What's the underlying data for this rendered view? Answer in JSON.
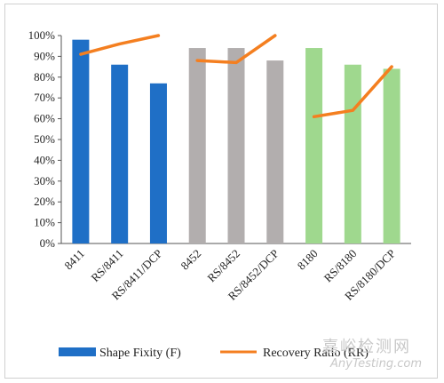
{
  "chart_data": {
    "type": "bar",
    "title": "",
    "xlabel": "",
    "ylabel": "",
    "ylim": [
      0,
      100
    ],
    "yticks": [
      "0%",
      "10%",
      "20%",
      "30%",
      "40%",
      "50%",
      "60%",
      "70%",
      "80%",
      "90%",
      "100%"
    ],
    "categories": [
      "8411",
      "RS/8411",
      "RS/8411/DCP",
      "8452",
      "RS/8452",
      "RS/8452/DCP",
      "8180",
      "RS/8180",
      "RS/8180/DCP"
    ],
    "bar_colors": [
      "#1f6fc6",
      "#1f6fc6",
      "#1f6fc6",
      "#b2aeae",
      "#b2aeae",
      "#b2aeae",
      "#9fd88e",
      "#9fd88e",
      "#9fd88e"
    ],
    "line_color": "#f47f20",
    "grid": false,
    "legend_position": "bottom",
    "series": [
      {
        "name": "Shape Fixity (F)",
        "kind": "bar",
        "values": [
          98,
          86,
          77,
          94,
          94,
          88,
          94,
          86,
          84
        ]
      },
      {
        "name": "Recovery Ratio (RR)",
        "kind": "line",
        "groups": [
          {
            "categories": [
              "8411",
              "RS/8411",
              "RS/8411/DCP"
            ],
            "values": [
              91,
              96,
              100
            ]
          },
          {
            "categories": [
              "8452",
              "RS/8452",
              "RS/8452/DCP"
            ],
            "values": [
              88,
              87,
              100
            ]
          },
          {
            "categories": [
              "8180",
              "RS/8180",
              "RS/8180/DCP"
            ],
            "values": [
              61,
              64,
              85
            ]
          }
        ]
      }
    ]
  },
  "watermark": {
    "line1": "嘉峪检测网",
    "line2": "AnyTesting.com"
  }
}
